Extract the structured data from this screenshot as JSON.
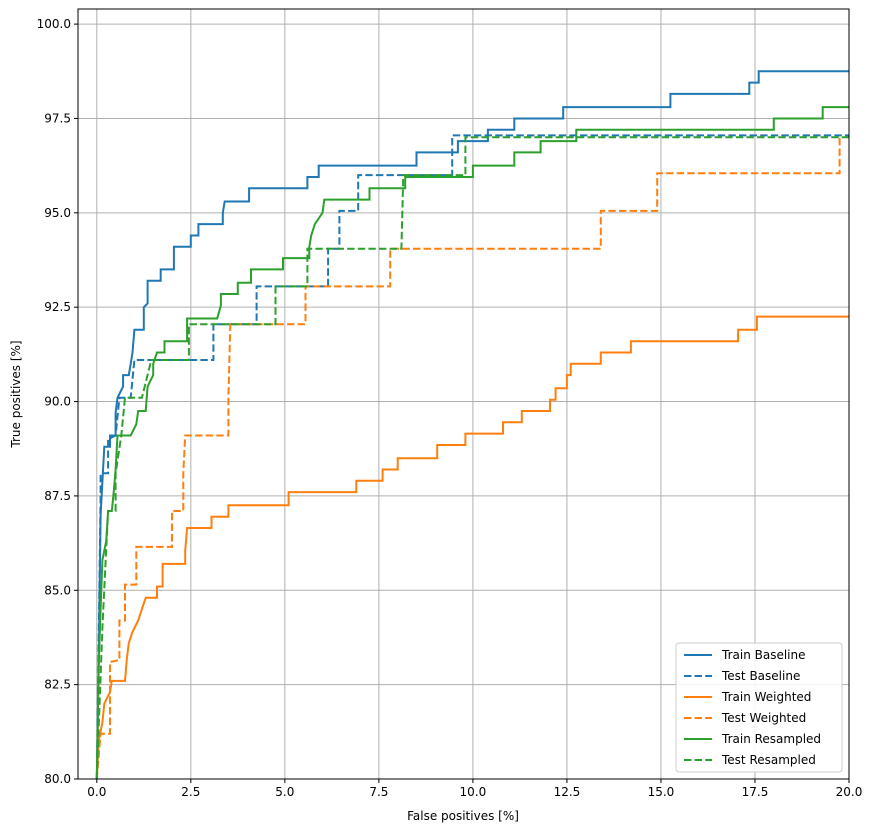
{
  "chart_data": {
    "type": "line",
    "title": "",
    "xlabel": "False positives [%]",
    "ylabel": "True positives [%]",
    "xlim": [
      -0.5,
      20
    ],
    "ylim": [
      80,
      100.4
    ],
    "xticks": [
      0.0,
      2.5,
      5.0,
      7.5,
      10.0,
      12.5,
      15.0,
      17.5,
      20.0
    ],
    "xtick_labels": [
      "0.0",
      "2.5",
      "5.0",
      "7.5",
      "10.0",
      "12.5",
      "15.0",
      "17.5",
      "20.0"
    ],
    "yticks": [
      80,
      82.5,
      85,
      87.5,
      90,
      92.5,
      95,
      97.5,
      100
    ],
    "ytick_labels": [
      "80.0",
      "82.5",
      "85.0",
      "87.5",
      "90.0",
      "92.5",
      "95.0",
      "97.5",
      "100.0"
    ],
    "grid": true,
    "legend_position": "bottom-right",
    "series": [
      {
        "name": "Train Baseline",
        "color": "#1f77b4",
        "dash": "solid",
        "points": [
          [
            0,
            80
          ],
          [
            0.05,
            83
          ],
          [
            0.1,
            87
          ],
          [
            0.2,
            88.8
          ],
          [
            0.35,
            88.8
          ],
          [
            0.35,
            89.1
          ],
          [
            0.5,
            89.1
          ],
          [
            0.5,
            89.7
          ],
          [
            0.55,
            90.1
          ],
          [
            0.7,
            90.4
          ],
          [
            0.7,
            90.7
          ],
          [
            0.85,
            90.7
          ],
          [
            0.9,
            91
          ],
          [
            0.95,
            91.3
          ],
          [
            1.0,
            91.9
          ],
          [
            1.25,
            91.9
          ],
          [
            1.25,
            92.5
          ],
          [
            1.35,
            92.6
          ],
          [
            1.35,
            93.2
          ],
          [
            1.7,
            93.2
          ],
          [
            1.7,
            93.5
          ],
          [
            2.05,
            93.5
          ],
          [
            2.05,
            94.1
          ],
          [
            2.5,
            94.1
          ],
          [
            2.5,
            94.4
          ],
          [
            2.7,
            94.4
          ],
          [
            2.7,
            94.7
          ],
          [
            3.35,
            94.7
          ],
          [
            3.35,
            95.0
          ],
          [
            3.4,
            95.3
          ],
          [
            4.05,
            95.3
          ],
          [
            4.05,
            95.65
          ],
          [
            5.6,
            95.65
          ],
          [
            5.6,
            95.95
          ],
          [
            5.9,
            95.95
          ],
          [
            5.9,
            96.25
          ],
          [
            8.5,
            96.25
          ],
          [
            8.5,
            96.6
          ],
          [
            9.6,
            96.6
          ],
          [
            9.6,
            96.9
          ],
          [
            10.4,
            96.9
          ],
          [
            10.4,
            97.2
          ],
          [
            11.1,
            97.2
          ],
          [
            11.1,
            97.5
          ],
          [
            12.4,
            97.5
          ],
          [
            12.4,
            97.8
          ],
          [
            15.25,
            97.8
          ],
          [
            15.25,
            98.15
          ],
          [
            17.35,
            98.15
          ],
          [
            17.35,
            98.45
          ],
          [
            17.6,
            98.45
          ],
          [
            17.6,
            98.75
          ],
          [
            20,
            98.75
          ]
        ]
      },
      {
        "name": "Test Baseline",
        "color": "#1f77b4",
        "dash": "dashed",
        "points": [
          [
            0,
            80
          ],
          [
            0.1,
            87.5
          ],
          [
            0.1,
            88.1
          ],
          [
            0.3,
            88.1
          ],
          [
            0.3,
            89.0
          ],
          [
            0.5,
            89.1
          ],
          [
            0.6,
            90.1
          ],
          [
            0.9,
            90.1
          ],
          [
            1.0,
            91.1
          ],
          [
            3.1,
            91.1
          ],
          [
            3.1,
            92.05
          ],
          [
            4.25,
            92.05
          ],
          [
            4.25,
            93.05
          ],
          [
            6.15,
            93.05
          ],
          [
            6.15,
            94.05
          ],
          [
            6.45,
            94.05
          ],
          [
            6.45,
            95.05
          ],
          [
            6.95,
            95.05
          ],
          [
            6.95,
            96.0
          ],
          [
            9.45,
            96.0
          ],
          [
            9.45,
            97.05
          ],
          [
            20,
            97.05
          ]
        ]
      },
      {
        "name": "Train Weighted",
        "color": "#ff7f0e",
        "dash": "solid",
        "points": [
          [
            0,
            80
          ],
          [
            0.05,
            81
          ],
          [
            0.15,
            81.5
          ],
          [
            0.2,
            82.0
          ],
          [
            0.35,
            82.3
          ],
          [
            0.4,
            82.6
          ],
          [
            0.75,
            82.6
          ],
          [
            0.8,
            83.2
          ],
          [
            0.85,
            83.6
          ],
          [
            0.95,
            83.9
          ],
          [
            1.1,
            84.2
          ],
          [
            1.2,
            84.5
          ],
          [
            1.3,
            84.8
          ],
          [
            1.6,
            84.8
          ],
          [
            1.6,
            85.1
          ],
          [
            1.75,
            85.1
          ],
          [
            1.75,
            85.7
          ],
          [
            2.35,
            85.7
          ],
          [
            2.35,
            86.05
          ],
          [
            2.4,
            86.65
          ],
          [
            3.05,
            86.65
          ],
          [
            3.05,
            86.95
          ],
          [
            3.5,
            86.95
          ],
          [
            3.5,
            87.25
          ],
          [
            5.1,
            87.25
          ],
          [
            5.1,
            87.6
          ],
          [
            6.9,
            87.6
          ],
          [
            6.9,
            87.9
          ],
          [
            7.6,
            87.9
          ],
          [
            7.6,
            88.2
          ],
          [
            8.0,
            88.2
          ],
          [
            8.0,
            88.5
          ],
          [
            9.05,
            88.5
          ],
          [
            9.05,
            88.85
          ],
          [
            9.8,
            88.85
          ],
          [
            9.8,
            89.15
          ],
          [
            10.8,
            89.15
          ],
          [
            10.8,
            89.45
          ],
          [
            11.3,
            89.45
          ],
          [
            11.3,
            89.75
          ],
          [
            12.05,
            89.75
          ],
          [
            12.05,
            90.05
          ],
          [
            12.2,
            90.05
          ],
          [
            12.2,
            90.35
          ],
          [
            12.5,
            90.35
          ],
          [
            12.5,
            90.7
          ],
          [
            12.6,
            90.7
          ],
          [
            12.6,
            91.0
          ],
          [
            13.4,
            91.0
          ],
          [
            13.4,
            91.3
          ],
          [
            14.2,
            91.3
          ],
          [
            14.2,
            91.6
          ],
          [
            17.05,
            91.6
          ],
          [
            17.05,
            91.9
          ],
          [
            17.55,
            91.9
          ],
          [
            17.55,
            92.25
          ],
          [
            20,
            92.25
          ]
        ]
      },
      {
        "name": "Test Weighted",
        "color": "#ff7f0e",
        "dash": "dashed",
        "points": [
          [
            0,
            80
          ],
          [
            0.1,
            81.2
          ],
          [
            0.35,
            81.2
          ],
          [
            0.35,
            83.1
          ],
          [
            0.6,
            83.15
          ],
          [
            0.6,
            84.2
          ],
          [
            0.75,
            84.2
          ],
          [
            0.75,
            85.15
          ],
          [
            1.05,
            85.15
          ],
          [
            1.05,
            86.15
          ],
          [
            2.0,
            86.15
          ],
          [
            2.0,
            87.1
          ],
          [
            2.3,
            87.1
          ],
          [
            2.3,
            88.1
          ],
          [
            2.35,
            89.1
          ],
          [
            3.5,
            89.1
          ],
          [
            3.5,
            90.1
          ],
          [
            3.55,
            92.05
          ],
          [
            5.55,
            92.05
          ],
          [
            5.55,
            93.05
          ],
          [
            7.8,
            93.05
          ],
          [
            7.8,
            94.05
          ],
          [
            13.4,
            94.05
          ],
          [
            13.4,
            95.05
          ],
          [
            14.9,
            95.05
          ],
          [
            14.9,
            96.05
          ],
          [
            19.75,
            96.05
          ],
          [
            19.75,
            97.0
          ]
        ]
      },
      {
        "name": "Train Resampled",
        "color": "#2ca02c",
        "dash": "solid",
        "points": [
          [
            0,
            80
          ],
          [
            0.05,
            83
          ],
          [
            0.1,
            84.5
          ],
          [
            0.15,
            85.8
          ],
          [
            0.25,
            86.3
          ],
          [
            0.3,
            87.1
          ],
          [
            0.4,
            87.1
          ],
          [
            0.45,
            87.6
          ],
          [
            0.5,
            88.2
          ],
          [
            0.55,
            89.1
          ],
          [
            0.9,
            89.1
          ],
          [
            1.05,
            89.4
          ],
          [
            1.1,
            89.75
          ],
          [
            1.3,
            89.75
          ],
          [
            1.35,
            90.4
          ],
          [
            1.5,
            90.7
          ],
          [
            1.5,
            91.0
          ],
          [
            1.6,
            91.3
          ],
          [
            1.8,
            91.3
          ],
          [
            1.8,
            91.6
          ],
          [
            2.4,
            91.6
          ],
          [
            2.4,
            92.2
          ],
          [
            3.2,
            92.2
          ],
          [
            3.3,
            92.55
          ],
          [
            3.3,
            92.85
          ],
          [
            3.75,
            92.85
          ],
          [
            3.75,
            93.15
          ],
          [
            4.1,
            93.15
          ],
          [
            4.1,
            93.5
          ],
          [
            4.95,
            93.5
          ],
          [
            4.95,
            93.8
          ],
          [
            5.65,
            93.8
          ],
          [
            5.65,
            94.1
          ],
          [
            5.7,
            94.4
          ],
          [
            5.8,
            94.7
          ],
          [
            6.0,
            95.0
          ],
          [
            6.05,
            95.35
          ],
          [
            7.25,
            95.35
          ],
          [
            7.25,
            95.65
          ],
          [
            8.2,
            95.65
          ],
          [
            8.2,
            95.95
          ],
          [
            10.0,
            95.95
          ],
          [
            10.0,
            96.25
          ],
          [
            11.1,
            96.25
          ],
          [
            11.1,
            96.6
          ],
          [
            11.8,
            96.6
          ],
          [
            11.8,
            96.9
          ],
          [
            12.75,
            96.9
          ],
          [
            12.75,
            97.2
          ],
          [
            18.0,
            97.2
          ],
          [
            18.0,
            97.5
          ],
          [
            19.3,
            97.5
          ],
          [
            19.3,
            97.8
          ],
          [
            20,
            97.8
          ]
        ]
      },
      {
        "name": "Test Resampled",
        "color": "#2ca02c",
        "dash": "dashed",
        "points": [
          [
            0,
            80
          ],
          [
            0.15,
            84
          ],
          [
            0.25,
            86.1
          ],
          [
            0.3,
            87.1
          ],
          [
            0.5,
            87.1
          ],
          [
            0.5,
            88.1
          ],
          [
            0.65,
            89.1
          ],
          [
            0.75,
            90.1
          ],
          [
            1.2,
            90.1
          ],
          [
            1.45,
            91.1
          ],
          [
            2.45,
            91.1
          ],
          [
            2.45,
            92.05
          ],
          [
            4.75,
            92.05
          ],
          [
            4.75,
            93.05
          ],
          [
            5.6,
            93.05
          ],
          [
            5.6,
            94.05
          ],
          [
            8.1,
            94.05
          ],
          [
            8.15,
            96.0
          ],
          [
            9.8,
            96.0
          ],
          [
            9.8,
            97.0
          ],
          [
            20,
            97.0
          ]
        ]
      }
    ]
  }
}
